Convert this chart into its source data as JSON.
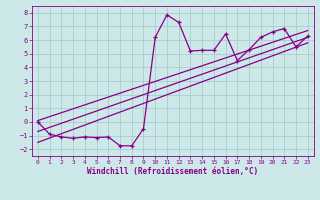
{
  "xlabel": "Windchill (Refroidissement éolien,°C)",
  "xlim": [
    -0.5,
    23.5
  ],
  "ylim": [
    -2.5,
    8.5
  ],
  "yticks": [
    -2,
    -1,
    0,
    1,
    2,
    3,
    4,
    5,
    6,
    7,
    8
  ],
  "xticks": [
    0,
    1,
    2,
    3,
    4,
    5,
    6,
    7,
    8,
    9,
    10,
    11,
    12,
    13,
    14,
    15,
    16,
    17,
    18,
    19,
    20,
    21,
    22,
    23
  ],
  "bg_color": "#cce8e8",
  "grid_color": "#aacccc",
  "line_color": "#880088",
  "data_x": [
    0,
    1,
    2,
    3,
    4,
    5,
    6,
    7,
    8,
    9,
    10,
    11,
    12,
    13,
    14,
    15,
    16,
    17,
    18,
    19,
    20,
    21,
    22,
    23
  ],
  "data_y": [
    0.0,
    -0.9,
    -1.1,
    -1.2,
    -1.1,
    -1.15,
    -1.1,
    -1.75,
    -1.75,
    -0.5,
    6.2,
    7.85,
    7.3,
    5.2,
    5.25,
    5.25,
    6.45,
    4.5,
    5.3,
    6.2,
    6.6,
    6.85,
    5.5,
    6.3
  ],
  "line1_x": [
    0,
    23
  ],
  "line1_y": [
    -1.5,
    5.8
  ],
  "line2_x": [
    0,
    23
  ],
  "line2_y": [
    -0.7,
    6.2
  ],
  "line3_x": [
    0,
    23
  ],
  "line3_y": [
    0.1,
    6.7
  ]
}
